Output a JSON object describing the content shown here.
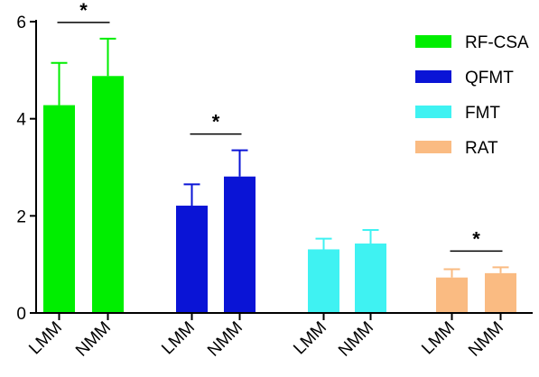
{
  "chart_data": {
    "type": "bar",
    "title": "",
    "xlabel": "",
    "ylabel": "",
    "ylim": [
      0,
      6
    ],
    "y_ticks": [
      0,
      2,
      4,
      6
    ],
    "grid": false,
    "legend_position": "top-right",
    "groups": [
      {
        "name": "RF-CSA",
        "color": "#00ee00",
        "categories": [
          "LMM",
          "NMM"
        ],
        "values": [
          4.28,
          4.88
        ],
        "errors": [
          0.87,
          0.77
        ]
      },
      {
        "name": "QFMT",
        "color": "#0a14d6",
        "categories": [
          "LMM",
          "NMM"
        ],
        "values": [
          2.21,
          2.81
        ],
        "errors": [
          0.44,
          0.54
        ]
      },
      {
        "name": "FMT",
        "color": "#3ff2f2",
        "categories": [
          "LMM",
          "NMM"
        ],
        "values": [
          1.31,
          1.43
        ],
        "errors": [
          0.22,
          0.28
        ]
      },
      {
        "name": "RAT",
        "color": "#fabb82",
        "categories": [
          "LMM",
          "NMM"
        ],
        "values": [
          0.73,
          0.82
        ],
        "errors": [
          0.17,
          0.12
        ]
      }
    ],
    "significance": [
      {
        "group_index": 0,
        "label": "*"
      },
      {
        "group_index": 1,
        "label": "*"
      },
      {
        "group_index": 3,
        "label": "*"
      }
    ]
  }
}
